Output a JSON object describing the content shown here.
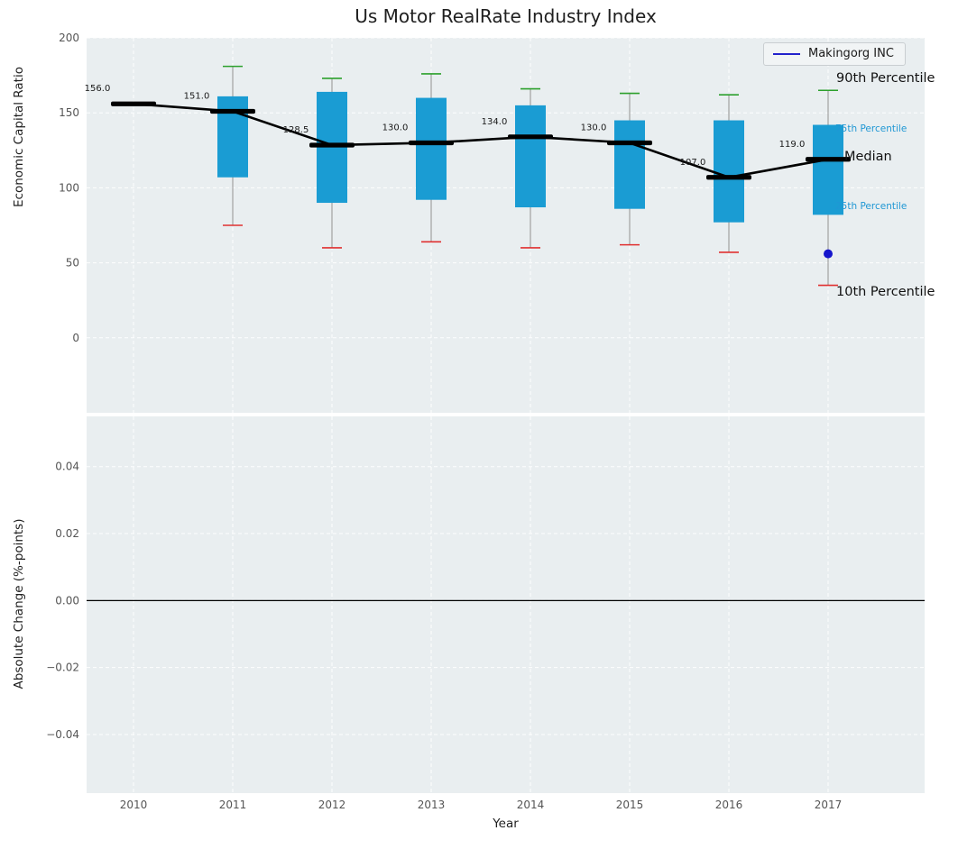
{
  "title": "Us Motor RealRate Industry Index",
  "legend": {
    "label": "Makingorg INC"
  },
  "annotations": {
    "p90": "90th Percentile",
    "p75": "75th Percentile",
    "median": "Median",
    "p25": "25th Percentile",
    "p10": "10th Percentile"
  },
  "colors": {
    "box": "#1a9cd3",
    "cap_top": "#2ca02c",
    "cap_bottom": "#e03030",
    "whisker": "#9a9a9a",
    "median": "#000000",
    "trend": "#000000",
    "marker": "#1515cc",
    "legend_line": "#2222cc",
    "plot_bg": "#e9eef0",
    "grid": "#ffffff",
    "annotation_small": "#1f97d4",
    "tick": "#555555"
  },
  "chart_data": [
    {
      "type": "box",
      "title": "Us Motor RealRate Industry Index",
      "ylabel": "Economic Capital Ratio",
      "ylim": [
        -50,
        200
      ],
      "ytick_values": [
        200,
        150,
        100,
        50,
        0
      ],
      "ytick_labels": [
        "200",
        "150",
        "100",
        "50",
        "0"
      ],
      "categories": [
        "2010",
        "2011",
        "2012",
        "2013",
        "2014",
        "2015",
        "2016",
        "2017"
      ],
      "grid": true,
      "legend_position": "upper right",
      "series": [
        {
          "year": "2010",
          "median": 156,
          "median_label": "156.0",
          "p25": null,
          "p75": null,
          "p10": null,
          "p90": null
        },
        {
          "year": "2011",
          "median": 151,
          "median_label": "151.0",
          "p25": 107,
          "p75": 161,
          "p10": 75,
          "p90": 181
        },
        {
          "year": "2012",
          "median": 128.5,
          "median_label": "128.5",
          "p25": 90,
          "p75": 164,
          "p10": 60,
          "p90": 173
        },
        {
          "year": "2013",
          "median": 130,
          "median_label": "130.0",
          "p25": 92,
          "p75": 160,
          "p10": 64,
          "p90": 176
        },
        {
          "year": "2014",
          "median": 134,
          "median_label": "134.0",
          "p25": 87,
          "p75": 155,
          "p10": 60,
          "p90": 166
        },
        {
          "year": "2015",
          "median": 130,
          "median_label": "130.0",
          "p25": 86,
          "p75": 145,
          "p10": 62,
          "p90": 163
        },
        {
          "year": "2016",
          "median": 107,
          "median_label": "107.0",
          "p25": 77,
          "p75": 145,
          "p10": 57,
          "p90": 162
        },
        {
          "year": "2017",
          "median": 119,
          "median_label": "119.0",
          "p25": 82,
          "p75": 142,
          "p10": 35,
          "p90": 165
        }
      ],
      "company_point": {
        "series": "Makingorg INC",
        "year": "2017",
        "value": 56
      }
    },
    {
      "type": "line",
      "ylabel": "Absolute Change (%-points)",
      "xlabel": "Year",
      "ylim": [
        -0.0575,
        0.055
      ],
      "ytick_values": [
        0.04,
        0.02,
        0,
        -0.02,
        -0.04
      ],
      "ytick_labels": [
        "0.04",
        "0.02",
        "0.00",
        "−0.02",
        "−0.04"
      ],
      "categories": [
        "2010",
        "2011",
        "2012",
        "2013",
        "2014",
        "2015",
        "2016",
        "2017"
      ],
      "grid": true,
      "zero_line": 0
    }
  ]
}
